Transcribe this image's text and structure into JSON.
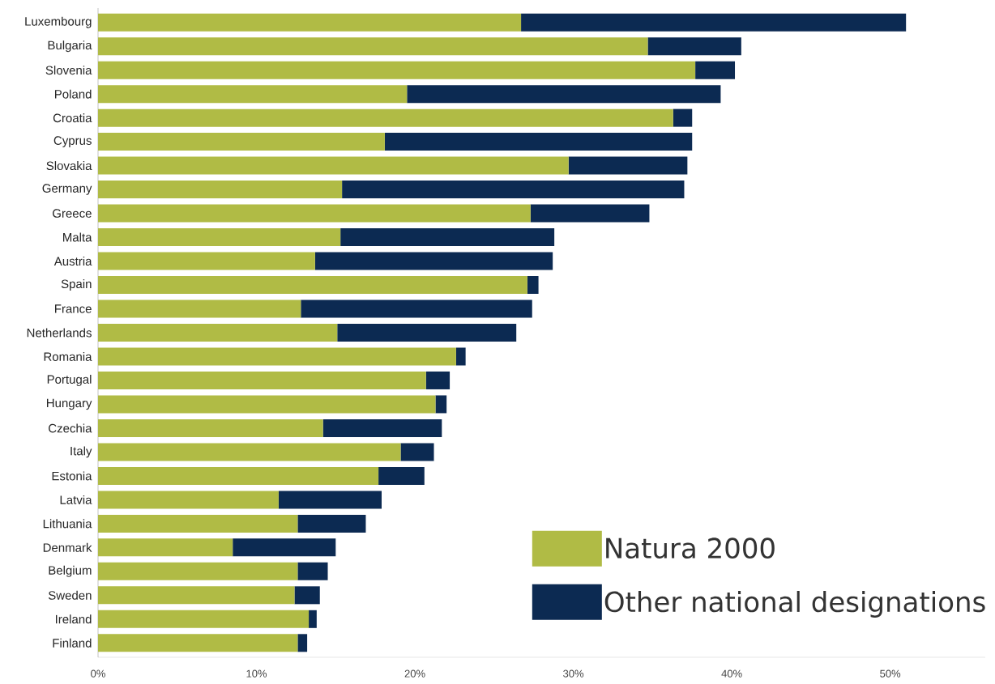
{
  "chart_data": {
    "type": "bar",
    "orientation": "horizontal",
    "stacked": true,
    "categories": [
      "Luxembourg",
      "Bulgaria",
      "Slovenia",
      "Poland",
      "Croatia",
      "Cyprus",
      "Slovakia",
      "Germany",
      "Greece",
      "Malta",
      "Austria",
      "Spain",
      "France",
      "Netherlands",
      "Romania",
      "Portugal",
      "Hungary",
      "Czechia",
      "Italy",
      "Estonia",
      "Latvia",
      "Lithuania",
      "Denmark",
      "Belgium",
      "Sweden",
      "Ireland",
      "Finland"
    ],
    "series": [
      {
        "name": "Natura 2000",
        "color": "#b0bb45",
        "values": [
          26.7,
          34.7,
          37.7,
          19.5,
          36.3,
          18.1,
          29.7,
          15.4,
          27.3,
          15.3,
          13.7,
          27.1,
          12.8,
          15.1,
          22.6,
          20.7,
          21.3,
          14.2,
          19.1,
          17.7,
          11.4,
          12.6,
          8.5,
          12.6,
          12.4,
          13.3,
          12.6
        ]
      },
      {
        "name": "Other national designations",
        "color": "#0c2a52",
        "values": [
          24.3,
          5.9,
          2.5,
          19.8,
          1.2,
          19.4,
          7.5,
          21.6,
          7.5,
          13.5,
          15.0,
          0.7,
          14.6,
          11.3,
          0.6,
          1.5,
          0.7,
          7.5,
          2.1,
          2.9,
          6.5,
          4.3,
          6.5,
          1.9,
          1.6,
          0.5,
          0.6
        ]
      }
    ],
    "xlim": [
      0,
      56
    ],
    "xticks": [
      {
        "value": 0,
        "label": "0%"
      },
      {
        "value": 10,
        "label": "10%"
      },
      {
        "value": 20,
        "label": "20%"
      },
      {
        "value": 30,
        "label": "30%"
      },
      {
        "value": 40,
        "label": "40%"
      },
      {
        "value": 50,
        "label": "50%"
      }
    ],
    "grid": false,
    "legend": "bottom right"
  }
}
